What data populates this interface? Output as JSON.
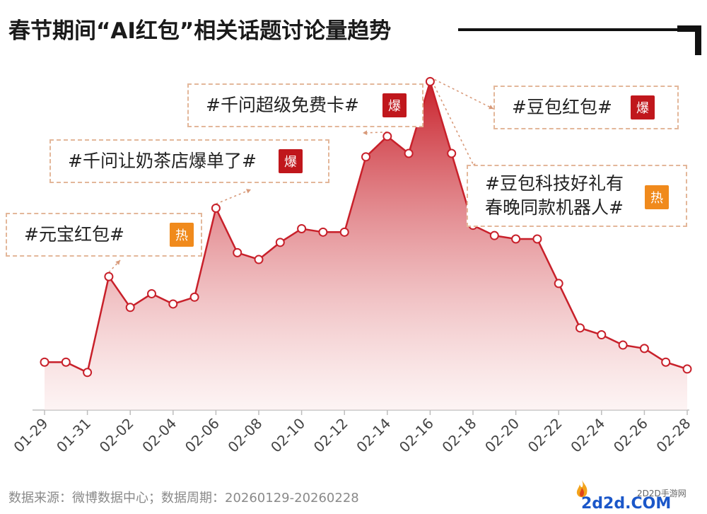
{
  "title": "春节期间“AI红包”相关话题讨论量趋势",
  "source": "数据来源：微博数据中心；数据周期：20260129-20260228",
  "watermark": {
    "site_text": "2D2D手游网",
    "logo_text": "2d2d.COM"
  },
  "colors": {
    "line": "#c8202a",
    "area_top": "#c8202a",
    "area_bottom": "#fbe9e9",
    "badge_bao": "#c0171c",
    "badge_re": "#f08a1c"
  },
  "annotations": [
    {
      "text": "#元宝红包#",
      "badge": "热",
      "point_date": "02-01"
    },
    {
      "text": "#千问让奶茶店爆单了#",
      "badge": "爆",
      "point_date": "02-06"
    },
    {
      "text": "#千问超级免费卡#",
      "badge": "爆",
      "point_date": "02-14"
    },
    {
      "text": "#豆包红包#",
      "badge": "爆",
      "point_date": "02-16"
    },
    {
      "text_lines": [
        "#豆包科技好礼有",
        "春晚同款机器人#"
      ],
      "badge": "热",
      "point_date": "02-16"
    }
  ],
  "chart_data": {
    "type": "area",
    "title": "春节期间“AI红包”相关话题讨论量趋势",
    "xlabel": "",
    "ylabel": "",
    "grid": false,
    "x": [
      "01-29",
      "01-30",
      "01-31",
      "02-01",
      "02-02",
      "02-03",
      "02-04",
      "02-05",
      "02-06",
      "02-07",
      "02-08",
      "02-09",
      "02-10",
      "02-11",
      "02-12",
      "02-13",
      "02-14",
      "02-15",
      "02-16",
      "02-17",
      "02-18",
      "02-19",
      "02-20",
      "02-21",
      "02-22",
      "02-23",
      "02-24",
      "02-25",
      "02-26",
      "02-27",
      "02-28"
    ],
    "x_tick_labels": [
      "01-29",
      "01-31",
      "02-02",
      "02-04",
      "02-06",
      "02-08",
      "02-10",
      "02-12",
      "02-14",
      "02-16",
      "02-18",
      "02-20",
      "02-22",
      "02-24",
      "02-26",
      "02-28"
    ],
    "values": [
      14,
      14,
      11,
      39,
      30,
      34,
      31,
      33,
      59,
      46,
      44,
      49,
      53,
      52,
      52,
      74,
      80,
      75,
      96,
      75,
      54,
      51,
      50,
      50,
      37,
      24,
      22,
      19,
      18,
      14,
      12
    ],
    "ylim": [
      0,
      100
    ]
  }
}
